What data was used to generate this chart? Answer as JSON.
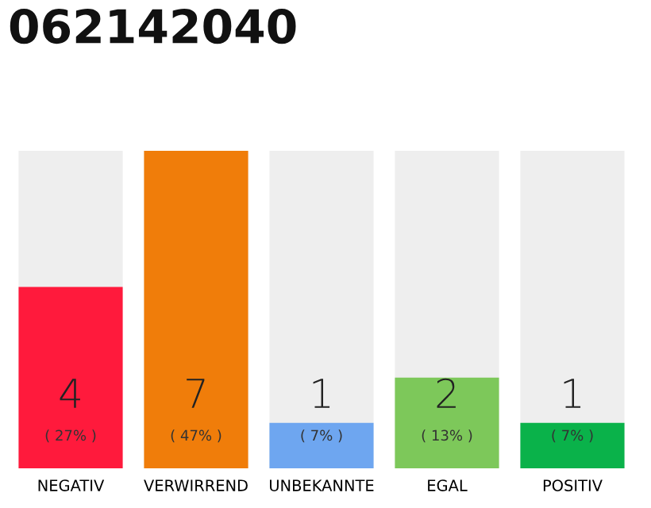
{
  "chart_data": {
    "type": "bar",
    "title": "062142040",
    "categories": [
      "NEGATIV",
      "VERWIRREND",
      "UNBEKANNTE",
      "EGAL",
      "POSITIV"
    ],
    "values": [
      4,
      7,
      1,
      2,
      1
    ],
    "colors": [
      "#ff1a3c",
      "#f07d0a",
      "#6ea6f0",
      "#7dc85a",
      "#0ab24a"
    ],
    "value_labels": [
      "4\n( 27% )",
      "7\n( 47% )",
      "1\n( 7% )",
      "2\n( 13% )",
      "1\n( 7% )"
    ],
    "tick_labels": "x",
    "grid": false,
    "legend": false
  }
}
